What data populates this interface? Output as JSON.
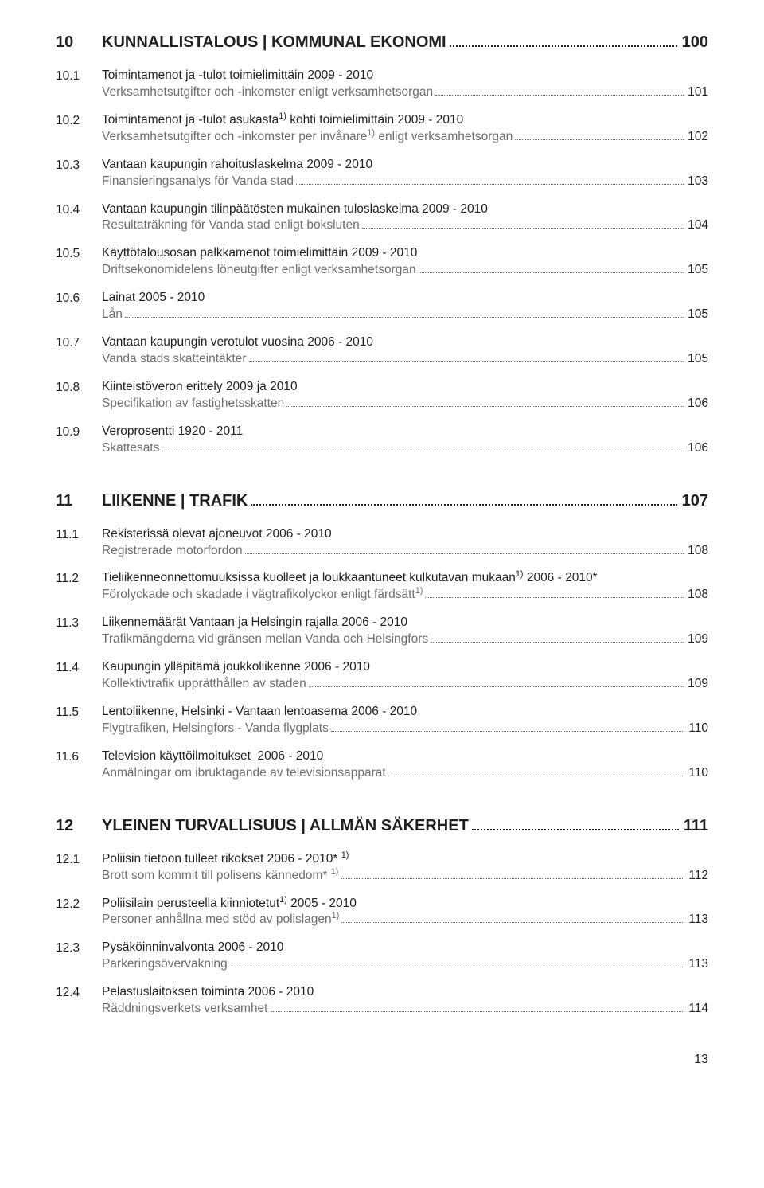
{
  "page_number": "13",
  "sections": [
    {
      "num": "10",
      "title": "KUNNALLISTALOUS | KOMMUNAL EKONOMI",
      "page": "100",
      "entries": [
        {
          "num": "10.1",
          "fi": "Toimintamenot ja -tulot toimielimittäin 2009 - 2010",
          "sv": "Verksamhetsutgifter och -inkomster enligt verksamhetsorgan",
          "page": "101"
        },
        {
          "num": "10.2",
          "fi": "Toimintamenot ja -tulot asukasta<sup>1)</sup> kohti toimielimittäin 2009 - 2010",
          "sv": "Verksamhetsutgifter och -inkomster per invånare<sup>1)</sup> enligt verksamhetsorgan",
          "page": "102"
        },
        {
          "num": "10.3",
          "fi": "Vantaan kaupungin rahoituslaskelma 2009 - 2010",
          "sv": "Finansieringsanalys för Vanda stad",
          "page": "103"
        },
        {
          "num": "10.4",
          "fi": "Vantaan kaupungin tilinpäätösten mukainen tuloslaskelma 2009 - 2010",
          "sv": "Resultaträkning för Vanda stad enligt boksluten",
          "page": "104"
        },
        {
          "num": "10.5",
          "fi": "Käyttötalousosan palkkamenot toimielimittäin 2009 - 2010",
          "sv": "Driftsekonomidelens löneutgifter enligt verksamhetsorgan",
          "page": "105"
        },
        {
          "num": "10.6",
          "fi": "Lainat 2005 - 2010",
          "sv": "Lån",
          "page": "105"
        },
        {
          "num": "10.7",
          "fi": "Vantaan kaupungin verotulot vuosina 2006 - 2010",
          "sv": "Vanda stads skatteintäkter",
          "page": "105"
        },
        {
          "num": "10.8",
          "fi": "Kiinteistöveron erittely 2009 ja 2010",
          "sv": "Specifikation av fastighetsskatten",
          "page": "106"
        },
        {
          "num": "10.9",
          "fi": "Veroprosentti 1920 - 2011",
          "sv": "Skattesats",
          "page": "106"
        }
      ]
    },
    {
      "num": "11",
      "title": "LIIKENNE | TRAFIK",
      "page": "107",
      "entries": [
        {
          "num": "11.1",
          "fi": "Rekisterissä olevat ajoneuvot 2006 - 2010",
          "sv": "Registrerade motorfordon",
          "page": "108"
        },
        {
          "num": "11.2",
          "fi": "Tieliikenneonnettomuuksissa kuolleet ja loukkaantuneet kulkutavan mukaan<sup>1)</sup> 2006 - 2010*",
          "sv": "Förolyckade och skadade i vägtrafikolyckor enligt färdsätt<sup>1)</sup>",
          "page": "108"
        },
        {
          "num": "11.3",
          "fi": "Liikennemäärät Vantaan ja Helsingin rajalla 2006 - 2010",
          "sv": "Trafikmängderna vid gränsen mellan Vanda och Helsingfors",
          "page": "109"
        },
        {
          "num": "11.4",
          "fi": "Kaupungin ylläpitämä joukkoliikenne 2006 - 2010",
          "sv": "Kollektivtrafik upprätthållen av staden",
          "page": "109"
        },
        {
          "num": "11.5",
          "fi": "Lentoliikenne, Helsinki - Vantaan lentoasema 2006 - 2010",
          "sv": "Flygtrafiken, Helsingfors - Vanda flygplats",
          "page": "110"
        },
        {
          "num": "11.6",
          "fi": "Television käyttöilmoitukset  2006 - 2010",
          "sv": "Anmälningar om ibruktagande av televisionsapparat",
          "page": "110"
        }
      ]
    },
    {
      "num": "12",
      "title": "YLEINEN TURVALLISUUS | ALLMÄN SÄKERHET",
      "page": "111",
      "entries": [
        {
          "num": "12.1",
          "fi": "Poliisin tietoon tulleet rikokset 2006 - 2010* <sup>1)</sup>",
          "sv": "Brott som kommit till polisens kännedom* <sup>1)</sup>",
          "page": "112"
        },
        {
          "num": "12.2",
          "fi": "Poliisilain perusteella kiinniotetut<sup>1)</sup> 2005 - 2010",
          "sv": "Personer anhållna med stöd av polislagen<sup>1)</sup>",
          "page": "113"
        },
        {
          "num": "12.3",
          "fi": "Pysäköinninvalvonta 2006 - 2010",
          "sv": "Parkeringsövervakning",
          "page": "113"
        },
        {
          "num": "12.4",
          "fi": "Pelastuslaitoksen toiminta 2006 - 2010",
          "sv": "Räddningsverkets verksamhet",
          "page": "114"
        }
      ]
    }
  ]
}
